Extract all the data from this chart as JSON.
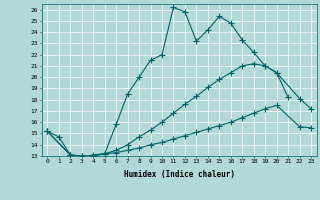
{
  "xlabel": "Humidex (Indice chaleur)",
  "bg_color": "#b2d8d8",
  "grid_color": "#ffffff",
  "line_color": "#006666",
  "xlim": [
    -0.5,
    23.5
  ],
  "ylim": [
    13,
    26.5
  ],
  "xticks": [
    0,
    1,
    2,
    3,
    4,
    5,
    6,
    7,
    8,
    9,
    10,
    11,
    12,
    13,
    14,
    15,
    16,
    17,
    18,
    19,
    20,
    21,
    22,
    23
  ],
  "yticks": [
    13,
    14,
    15,
    16,
    17,
    18,
    19,
    20,
    21,
    22,
    23,
    24,
    25,
    26
  ],
  "line1_x": [
    0,
    1,
    2,
    3,
    4,
    5,
    6,
    7,
    8,
    9,
    10,
    11,
    12,
    13,
    14,
    15,
    16,
    17,
    18,
    19,
    20,
    21
  ],
  "line1_y": [
    15.2,
    14.7,
    13.1,
    12.9,
    13.1,
    13.2,
    15.8,
    18.5,
    20.0,
    21.5,
    22.0,
    26.2,
    25.8,
    23.2,
    24.2,
    25.4,
    24.8,
    23.3,
    22.2,
    21.0,
    20.4,
    18.2
  ],
  "line2_x": [
    0,
    2,
    3,
    4,
    5,
    6,
    7,
    8,
    9,
    10,
    11,
    12,
    13,
    14,
    15,
    16,
    17,
    18,
    19,
    20,
    22,
    23
  ],
  "line2_y": [
    15.2,
    13.1,
    13.0,
    13.0,
    13.2,
    13.5,
    14.0,
    14.7,
    15.3,
    16.0,
    16.8,
    17.6,
    18.3,
    19.1,
    19.8,
    20.4,
    21.0,
    21.2,
    21.0,
    20.4,
    18.1,
    17.2
  ],
  "line3_x": [
    0,
    2,
    3,
    4,
    5,
    6,
    7,
    8,
    9,
    10,
    11,
    12,
    13,
    14,
    15,
    16,
    17,
    18,
    19,
    20,
    22,
    23
  ],
  "line3_y": [
    15.2,
    13.1,
    13.0,
    13.0,
    13.2,
    13.3,
    13.5,
    13.7,
    14.0,
    14.2,
    14.5,
    14.8,
    15.1,
    15.4,
    15.7,
    16.0,
    16.4,
    16.8,
    17.2,
    17.5,
    15.6,
    15.5
  ]
}
